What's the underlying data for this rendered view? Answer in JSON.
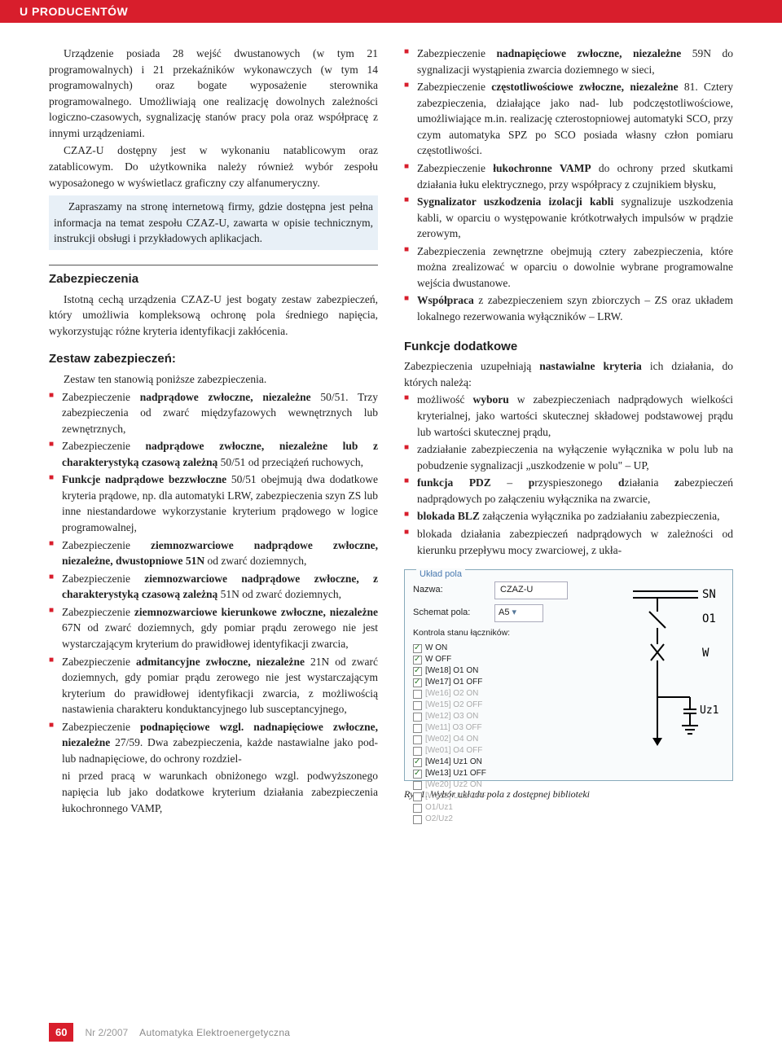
{
  "header": {
    "section": "U PRODUCENTÓW"
  },
  "col1": {
    "p1": "Urządzenie posiada 28 wejść dwustanowych (w tym 21 programowalnych) i 21 przekaźników wykonawczych (w tym 14 programowalnych) oraz bogate wyposażenie sterownika programowalnego. Umożliwiają one realizację dowolnych zależności logiczno-czasowych, sygnalizację stanów pracy pola oraz współpracę z innymi urządzeniami.",
    "p2": "CZAZ-U dostępny jest w wykonaniu natablicowym oraz zatablicowym. Do użytkownika należy również wybór zespołu wyposażonego w wyświetlacz graficzny czy alfanumeryczny.",
    "highlight": "Zapraszamy na stronę internetową firmy, gdzie dostępna jest pełna informacja na temat zespołu CZAZ-U, zawarta w opisie technicznym, instrukcji obsługi i przykładowych aplikacjach.",
    "h_zabez": "Zabezpieczenia",
    "p3": "Istotną cechą urządzenia CZAZ-U jest bogaty zestaw zabezpieczeń, który umożliwia kompleksową ochronę pola średniego napięcia, wykorzystując różne kryteria identyfikacji zakłócenia.",
    "h_zestaw": "Zestaw zabezpieczeń:",
    "zestaw_intro": "Zestaw ten stanowią poniższe zabezpieczenia.",
    "items": [
      "Zabezpieczenie <b>nadprądowe zwłoczne, niezależne</b> 50/51. Trzy zabezpieczenia od zwarć międzyfazowych wewnętrznych lub zewnętrznych,",
      "Zabezpieczenie <b>nadprądowe zwłoczne, niezależne lub z charakterystyką czasową zależną</b> 50/51 od przeciążeń ruchowych,",
      "<b>Funkcje nadprądowe bezzwłoczne</b> 50/51 obejmują dwa dodatkowe kryteria prądowe, np. dla automatyki LRW, zabezpieczenia szyn ZS lub inne niestandardowe wykorzystanie kryterium prądowego w logice programowalnej,",
      "Zabezpieczenie <b>ziemnozwarciowe nadprądowe zwłoczne, niezależne, dwustopniowe 51N</b> od zwarć doziemnych,",
      "Zabezpieczenie <b>ziemnozwarciowe nadprądowe zwłoczne, z charakterystyką czasową zależną</b> 51N od zwarć doziemnych,",
      "Zabezpieczenie <b>ziemnozwarciowe kierunkowe zwłoczne, niezależne</b> 67N od zwarć doziemnych, gdy pomiar prądu zerowego nie jest wystarczającym kryterium do prawidłowej identyfikacji zwarcia,",
      "Zabezpieczenie <b>admitancyjne zwłoczne, niezależne</b> 21N od zwarć doziemnych, gdy pomiar prądu zerowego nie jest wystarczającym kryterium do prawidłowej identyfikacji zwarcia, z możliwością nastawienia charakteru konduktancyjnego lub susceptancyjnego,",
      "Zabezpieczenie <b>podnapięciowe wzgl. nadnapięciowe zwłoczne, niezależne</b> 27/59. Dwa zabezpieczenia, każde nastawialne jako pod- lub nadnapięciowe, do ochrony rozdziel-"
    ]
  },
  "col2": {
    "precont": "ni przed pracą w warunkach obniżonego wzgl. podwyższonego napięcia lub jako dodatkowe kryterium działania zabezpieczenia łukochronnego VAMP,",
    "items2": [
      "Zabezpieczenie <b>nadnapięciowe zwłoczne, niezależne</b> 59N do sygnalizacji wystąpienia zwarcia doziemnego w sieci,",
      "Zabezpieczenie <b>częstotliwościowe zwłoczne, niezależne</b> 81. Cztery zabezpieczenia, działające jako nad- lub podczęstotliwościowe, umożliwiające m.in. realizację czterostopniowej automatyki SCO, przy czym automatyka SPZ po SCO posiada własny człon pomiaru częstotliwości.",
      "Zabezpieczenie <b>łukochronne VAMP</b> do ochrony przed skutkami działania łuku elektrycznego, przy współpracy z czujnikiem błysku,",
      "<b>Sygnalizator uszkodzenia izolacji kabli</b> sygnalizuje uszkodzenia kabli, w oparciu o występowanie krótkotrwałych impulsów w prądzie zerowym,",
      "Zabezpieczenia zewnętrzne obejmują cztery zabezpieczenia, które można zrealizować w oparciu o dowolnie wybrane programowalne wejścia dwustanowe.",
      "<b>Współpraca</b> z zabezpieczeniem szyn zbiorczych – ZS oraz układem lokalnego rezerwowania wyłączników – LRW."
    ],
    "h_funkcje": "Funkcje dodatkowe",
    "funkcje_intro": "Zabezpieczenia uzupełniają <b>nastawialne kryteria</b> ich działania, do których należą:",
    "items3": [
      "możliwość <b>wyboru</b> w zabezpieczeniach nadprądowych wielkości kryterialnej, jako wartości skutecznej składowej podstawowej prądu lub wartości skutecznej prądu,",
      "zadziałanie zabezpieczenia na wyłączenie wyłącznika w polu lub na pobudzenie sygnalizacji „uszkodzenie w polu\" – UP,",
      "<b>funkcja PDZ</b> – <b>p</b>rzyspieszonego <b>d</b>ziałania <b>z</b>abezpieczeń nadprądowych po załączeniu wyłącznika na zwarcie,",
      "<b>blokada BLZ</b> załączenia wyłącznika po zadziałaniu zabezpieczenia,",
      "blokada działania zabezpieczeń nadprądowych w zależności od kierunku przepływu mocy zwarciowej, z ukła-"
    ]
  },
  "figure": {
    "group": "Układ pola",
    "nazwa_label": "Nazwa:",
    "nazwa_val": "CZAZ-U",
    "schemat_label": "Schemat pola:",
    "schemat_val": "A5",
    "kontrola": "Kontrola stanu łączników:",
    "checks": [
      {
        "on": true,
        "t": "W ON"
      },
      {
        "on": true,
        "t": "W OFF"
      },
      {
        "on": true,
        "t": "[We18] O1 ON"
      },
      {
        "on": true,
        "t": "[We17] O1 OFF"
      },
      {
        "on": false,
        "t": "[We16] O2 ON"
      },
      {
        "on": false,
        "t": "[We15] O2 OFF"
      },
      {
        "on": false,
        "t": "[We12] O3 ON"
      },
      {
        "on": false,
        "t": "[We11] O3 OFF"
      },
      {
        "on": false,
        "t": "[We02] O4 ON"
      },
      {
        "on": false,
        "t": "[We01] O4 OFF"
      },
      {
        "on": true,
        "t": "[We14] Uz1 ON"
      },
      {
        "on": true,
        "t": "[We13] Uz1 OFF"
      },
      {
        "on": false,
        "t": "[We20] Uz2 ON"
      },
      {
        "on": false,
        "t": "[We19] Uz2 OFF"
      },
      {
        "on": false,
        "t": "O1/Uz1"
      },
      {
        "on": false,
        "t": "O2/Uz2"
      }
    ],
    "caption": "Rys.1. Wybór układu pola z dostępnej biblioteki",
    "diag_labels": {
      "sn": "SN",
      "o1": "O1",
      "w": "W",
      "uz1": "Uz1"
    }
  },
  "footer": {
    "page": "60",
    "issue": "Nr 2/2007",
    "journal": "Automatyka Elektroenergetyczna"
  }
}
